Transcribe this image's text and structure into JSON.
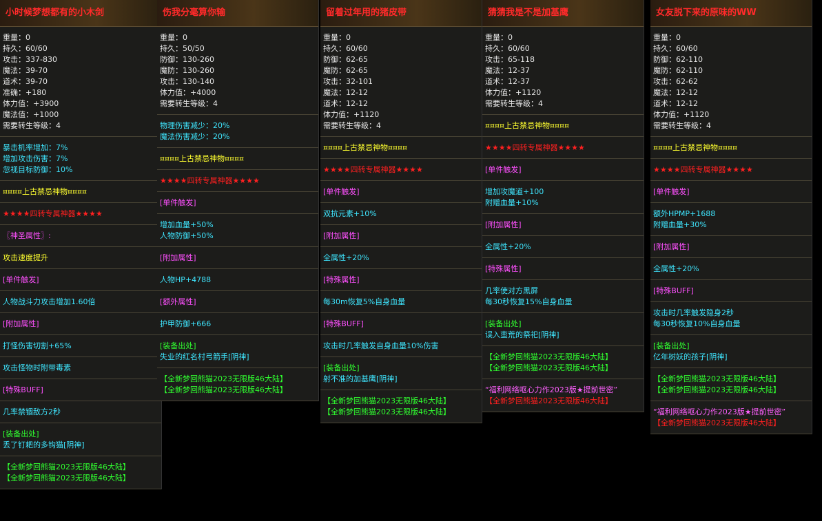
{
  "panels": [
    {
      "title": "小时候梦想都有的小木剑",
      "groups": [
        [
          {
            "text": "重量：0",
            "color": "#e8e8e8"
          },
          {
            "text": "持久：60/60",
            "color": "#e8e8e8"
          },
          {
            "text": "攻击：337-830",
            "color": "#e8e8e8"
          },
          {
            "text": "魔法：39-70",
            "color": "#e8e8e8"
          },
          {
            "text": "道术：39-70",
            "color": "#e8e8e8"
          },
          {
            "text": "准确：+180",
            "color": "#e8e8e8"
          },
          {
            "text": "体力值：+3900",
            "color": "#e8e8e8"
          },
          {
            "text": "魔法值：+1000",
            "color": "#e8e8e8"
          },
          {
            "text": "需要转生等级：4",
            "color": "#e8e8e8"
          }
        ],
        [
          {
            "text": "暴击机率增加：7%",
            "color": "#3fe6ff"
          },
          {
            "text": "增加攻击伤害：7%",
            "color": "#3fe6ff"
          },
          {
            "text": "忽视目标防御：10%",
            "color": "#3fe6ff"
          }
        ],
        [
          {
            "text": "¤¤¤¤上古禁忌神物¤¤¤¤",
            "color": "#ffff30"
          }
        ],
        [
          {
            "text": "★★★★四转专属神器★★★★",
            "color": "#ff2020"
          }
        ],
        [
          {
            "text": "〖神圣属性〗:",
            "color": "#ff50ff"
          }
        ],
        [
          {
            "text": "攻击速度提升",
            "color": "#ffff30"
          }
        ],
        [
          {
            "text": "[单件触发]",
            "color": "#ff50ff"
          }
        ],
        [
          {
            "text": "人物战斗力攻击增加1.60倍",
            "color": "#3fe6ff"
          }
        ],
        [
          {
            "text": "[附加属性]",
            "color": "#ff50ff"
          }
        ],
        [
          {
            "text": "打怪伤害切割+65%",
            "color": "#3fe6ff"
          }
        ],
        [
          {
            "text": "攻击怪物时附带毒素",
            "color": "#3fe6ff"
          }
        ],
        [
          {
            "text": "[特殊BUFF]",
            "color": "#ff50ff"
          }
        ],
        [
          {
            "text": "几率禁锢敌方2秒",
            "color": "#3fe6ff"
          }
        ],
        [
          {
            "text": "[装备出处]",
            "color": "#30ff30"
          },
          {
            "text": "丢了钉耙的多钩猫[阴神]",
            "color": "#3fe6ff"
          }
        ],
        [
          {
            "text": "【全新梦回熊猫2023无限版46大陆】",
            "color": "#30ff30"
          },
          {
            "text": "【全新梦回熊猫2023无限版46大陆】",
            "color": "#30ff30"
          }
        ]
      ]
    },
    {
      "title": "伤我分毫算你输",
      "groups": [
        [
          {
            "text": "重量：0",
            "color": "#e8e8e8"
          },
          {
            "text": "持久：50/50",
            "color": "#e8e8e8"
          },
          {
            "text": "防御：130-260",
            "color": "#e8e8e8"
          },
          {
            "text": "魔防：130-260",
            "color": "#e8e8e8"
          },
          {
            "text": "攻击：130-140",
            "color": "#e8e8e8"
          },
          {
            "text": "体力值：+4000",
            "color": "#e8e8e8"
          },
          {
            "text": "需要转生等级：4",
            "color": "#e8e8e8"
          }
        ],
        [
          {
            "text": "物理伤害减少：20%",
            "color": "#3fe6ff"
          },
          {
            "text": "魔法伤害减少：20%",
            "color": "#3fe6ff"
          }
        ],
        [
          {
            "text": "¤¤¤¤上古禁忌神物¤¤¤¤",
            "color": "#ffff30"
          }
        ],
        [
          {
            "text": "★★★★四转专属神器★★★★",
            "color": "#ff2020"
          }
        ],
        [
          {
            "text": "[单件触发]",
            "color": "#ff50ff"
          }
        ],
        [
          {
            "text": "增加血量+50%",
            "color": "#3fe6ff"
          },
          {
            "text": "人物防御+50%",
            "color": "#3fe6ff"
          }
        ],
        [
          {
            "text": "[附加属性]",
            "color": "#ff50ff"
          }
        ],
        [
          {
            "text": "人物HP+4788",
            "color": "#3fe6ff"
          }
        ],
        [
          {
            "text": "[额外属性]",
            "color": "#ff50ff"
          }
        ],
        [
          {
            "text": "护甲防御+666",
            "color": "#3fe6ff"
          }
        ],
        [
          {
            "text": "[装备出处]",
            "color": "#30ff30"
          },
          {
            "text": "失业的红名村弓箭手[阴神]",
            "color": "#3fe6ff"
          }
        ],
        [
          {
            "text": "【全新梦回熊猫2023无限版46大陆】",
            "color": "#30ff30"
          },
          {
            "text": "【全新梦回熊猫2023无限版46大陆】",
            "color": "#30ff30"
          }
        ]
      ]
    },
    {
      "title": "留着过年用的猪皮带",
      "groups": [
        [
          {
            "text": "重量：0",
            "color": "#e8e8e8"
          },
          {
            "text": "持久：60/60",
            "color": "#e8e8e8"
          },
          {
            "text": "防御：62-65",
            "color": "#e8e8e8"
          },
          {
            "text": "魔防：62-65",
            "color": "#e8e8e8"
          },
          {
            "text": "攻击：32-101",
            "color": "#e8e8e8"
          },
          {
            "text": "魔法：12-12",
            "color": "#e8e8e8"
          },
          {
            "text": "道术：12-12",
            "color": "#e8e8e8"
          },
          {
            "text": "体力值：+1120",
            "color": "#e8e8e8"
          },
          {
            "text": "需要转生等级：4",
            "color": "#e8e8e8"
          }
        ],
        [
          {
            "text": "¤¤¤¤上古禁忌神物¤¤¤¤",
            "color": "#ffff30"
          }
        ],
        [
          {
            "text": "★★★★四转专属神器★★★★",
            "color": "#ff2020"
          }
        ],
        [
          {
            "text": "[单件触发]",
            "color": "#ff50ff"
          }
        ],
        [
          {
            "text": "双抗元素+10%",
            "color": "#3fe6ff"
          }
        ],
        [
          {
            "text": "[附加属性]",
            "color": "#ff50ff"
          }
        ],
        [
          {
            "text": "全属性+20%",
            "color": "#3fe6ff"
          }
        ],
        [
          {
            "text": "[特殊属性]",
            "color": "#ff50ff"
          }
        ],
        [
          {
            "text": "每30m恢复5%自身血量",
            "color": "#3fe6ff"
          }
        ],
        [
          {
            "text": "[特殊BUFF]",
            "color": "#ff50ff"
          }
        ],
        [
          {
            "text": "攻击时几率触发自身血量10%伤害",
            "color": "#3fe6ff"
          }
        ],
        [
          {
            "text": "[装备出处]",
            "color": "#30ff30"
          },
          {
            "text": "射不准的加基鹰[阴神]",
            "color": "#3fe6ff"
          }
        ],
        [
          {
            "text": "【全新梦回熊猫2023无限版46大陆】",
            "color": "#30ff30"
          },
          {
            "text": "【全新梦回熊猫2023无限版46大陆】",
            "color": "#30ff30"
          }
        ]
      ]
    },
    {
      "title": "猜猜我是不是加基鹰",
      "groups": [
        [
          {
            "text": "重量：0",
            "color": "#e8e8e8"
          },
          {
            "text": "持久：60/60",
            "color": "#e8e8e8"
          },
          {
            "text": "攻击：65-118",
            "color": "#e8e8e8"
          },
          {
            "text": "魔法：12-37",
            "color": "#e8e8e8"
          },
          {
            "text": "道术：12-37",
            "color": "#e8e8e8"
          },
          {
            "text": "体力值：+1120",
            "color": "#e8e8e8"
          },
          {
            "text": "需要转生等级：4",
            "color": "#e8e8e8"
          }
        ],
        [
          {
            "text": "¤¤¤¤上古禁忌神物¤¤¤¤",
            "color": "#ffff30"
          }
        ],
        [
          {
            "text": "★★★★四转专属神器★★★★",
            "color": "#ff2020"
          }
        ],
        [
          {
            "text": "[单件触发]",
            "color": "#ff50ff"
          }
        ],
        [
          {
            "text": "增加攻魔道+100",
            "color": "#3fe6ff"
          },
          {
            "text": "附赠血量+10%",
            "color": "#3fe6ff"
          }
        ],
        [
          {
            "text": "[附加属性]",
            "color": "#ff50ff"
          }
        ],
        [
          {
            "text": "全属性+20%",
            "color": "#3fe6ff"
          }
        ],
        [
          {
            "text": "[特殊属性]",
            "color": "#ff50ff"
          }
        ],
        [
          {
            "text": "几率使对方黑屏",
            "color": "#3fe6ff"
          },
          {
            "text": "每30秒恢复15%自身血量",
            "color": "#3fe6ff"
          }
        ],
        [
          {
            "text": "[装备出处]",
            "color": "#30ff30"
          },
          {
            "text": "误入蛮荒的祭祀[阴神]",
            "color": "#3fe6ff"
          }
        ],
        [
          {
            "text": "【全新梦回熊猫2023无限版46大陆】",
            "color": "#30ff30"
          },
          {
            "text": "【全新梦回熊猫2023无限版46大陆】",
            "color": "#30ff30"
          }
        ],
        [
          {
            "text": "“福利网络呕心力作2023版★提前世密”",
            "color": "#ff60ff"
          },
          {
            "text": "【全新梦回熊猫2023无限版46大陆】",
            "color": "#ff2020"
          }
        ]
      ]
    },
    {
      "title": "女友脱下来的原味的WW",
      "groups": [
        [
          {
            "text": "重量：0",
            "color": "#e8e8e8"
          },
          {
            "text": "持久：60/60",
            "color": "#e8e8e8"
          },
          {
            "text": "防御：62-110",
            "color": "#e8e8e8"
          },
          {
            "text": "魔防：62-110",
            "color": "#e8e8e8"
          },
          {
            "text": "攻击：62-62",
            "color": "#e8e8e8"
          },
          {
            "text": "魔法：12-12",
            "color": "#e8e8e8"
          },
          {
            "text": "道术：12-12",
            "color": "#e8e8e8"
          },
          {
            "text": "体力值：+1120",
            "color": "#e8e8e8"
          },
          {
            "text": "需要转生等级：4",
            "color": "#e8e8e8"
          }
        ],
        [
          {
            "text": "¤¤¤¤上古禁忌神物¤¤¤¤",
            "color": "#ffff30"
          }
        ],
        [
          {
            "text": "★★★★四转专属神器★★★★",
            "color": "#ff2020"
          }
        ],
        [
          {
            "text": "[单件触发]",
            "color": "#ff50ff"
          }
        ],
        [
          {
            "text": "额外HPMP+1688",
            "color": "#3fe6ff"
          },
          {
            "text": "附赠血量+30%",
            "color": "#3fe6ff"
          }
        ],
        [
          {
            "text": "[附加属性]",
            "color": "#ff50ff"
          }
        ],
        [
          {
            "text": "全属性+20%",
            "color": "#3fe6ff"
          }
        ],
        [
          {
            "text": "[特殊BUFF]",
            "color": "#ff50ff"
          }
        ],
        [
          {
            "text": "攻击时几率触发隐身2秒",
            "color": "#3fe6ff"
          },
          {
            "text": "每30秒恢复10%自身血量",
            "color": "#3fe6ff"
          }
        ],
        [
          {
            "text": "[装备出处]",
            "color": "#30ff30"
          },
          {
            "text": "亿年树妖的孩子[阴神]",
            "color": "#3fe6ff"
          }
        ],
        [
          {
            "text": "【全新梦回熊猫2023无限版46大陆】",
            "color": "#30ff30"
          },
          {
            "text": "【全新梦回熊猫2023无限版46大陆】",
            "color": "#30ff30"
          }
        ],
        [
          {
            "text": "“福利网络呕心力作2023版★提前世密”",
            "color": "#ff60ff"
          },
          {
            "text": "【全新梦回熊猫2023无限版46大陆】",
            "color": "#ff2020"
          }
        ]
      ]
    }
  ]
}
